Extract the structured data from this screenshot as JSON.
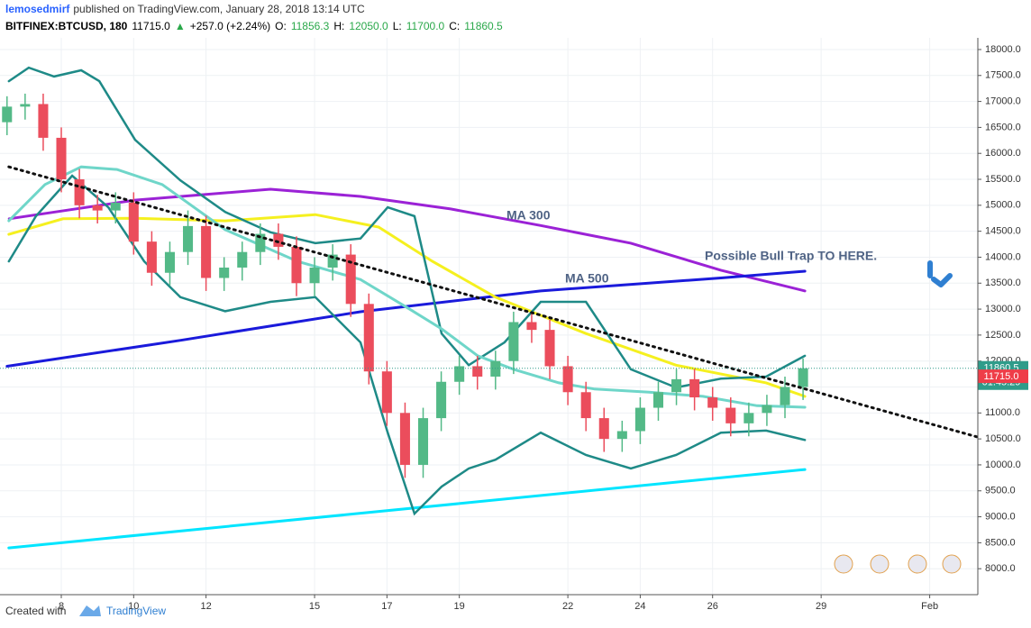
{
  "header": {
    "user": "lemosedmirf",
    "published": "published on TradingView.com, January 28, 2018 13:14 UTC",
    "quote": [
      {
        "text": "BITFINEX:BTCUSD, 180",
        "color": "#000000"
      },
      {
        "text": "11715.0",
        "color": "#000000"
      },
      {
        "text": "▲",
        "color": "#2aa84a"
      },
      {
        "text": "+257.0 (+2.24%)",
        "color": "#000000"
      },
      {
        "text": "O:",
        "color": "#000000"
      },
      {
        "text": "11856.3",
        "color": "#2aa84a"
      },
      {
        "text": "H:",
        "color": "#000000"
      },
      {
        "text": "12050.0",
        "color": "#2aa84a"
      },
      {
        "text": "L:",
        "color": "#000000"
      },
      {
        "text": "11700.0",
        "color": "#2aa84a"
      },
      {
        "text": "C:",
        "color": "#000000"
      },
      {
        "text": "11860.5",
        "color": "#2aa84a"
      }
    ]
  },
  "footer": {
    "created": "Created with",
    "brand": "TradingView"
  },
  "chart_data": {
    "type": "candlestick",
    "up_color": "#53b987",
    "down_color": "#eb4d5c",
    "x": [
      6.5,
      7,
      7.5,
      8,
      8.5,
      9,
      9.5,
      10,
      10.5,
      11,
      11.5,
      12,
      12.5,
      13,
      13.5,
      14,
      14.5,
      15,
      15.5,
      16,
      16.5,
      17,
      17.5,
      18,
      18.5,
      19,
      19.5,
      20,
      20.5,
      21,
      21.5,
      22,
      22.5,
      23,
      23.5,
      24,
      24.5,
      25,
      25.5,
      26,
      26.5,
      27,
      27.5,
      28,
      28.5
    ],
    "open": [
      16600,
      16900,
      16950,
      16300,
      15500,
      15000,
      14900,
      15050,
      14300,
      13700,
      14100,
      14600,
      13600,
      13800,
      14100,
      14450,
      14200,
      13500,
      13800,
      14050,
      13100,
      11800,
      11000,
      10000,
      10900,
      11600,
      11900,
      11700,
      12000,
      12750,
      12600,
      11900,
      11400,
      10900,
      10500,
      10650,
      11100,
      11400,
      11650,
      11300,
      11100,
      10800,
      11000,
      11150,
      11500
    ],
    "high": [
      17100,
      17150,
      17150,
      16500,
      15700,
      15200,
      15250,
      15250,
      14500,
      14300,
      14900,
      14800,
      14000,
      14300,
      14650,
      14650,
      14400,
      14000,
      14250,
      14250,
      13300,
      12000,
      11200,
      11100,
      11800,
      12100,
      12100,
      12200,
      12950,
      12950,
      12800,
      12100,
      11600,
      11100,
      10850,
      11300,
      11600,
      11850,
      11850,
      11500,
      11300,
      11200,
      11350,
      11700,
      12050
    ],
    "low": [
      16350,
      16650,
      16050,
      15250,
      14750,
      14650,
      14650,
      14050,
      13450,
      13450,
      13850,
      13350,
      13350,
      13550,
      13850,
      13950,
      13250,
      13250,
      13550,
      12850,
      11550,
      10750,
      9750,
      9750,
      10650,
      11350,
      11450,
      11450,
      11750,
      12350,
      11650,
      11150,
      10650,
      10250,
      10250,
      10400,
      10850,
      11150,
      11050,
      10850,
      10550,
      10550,
      10750,
      10900,
      11250
    ],
    "close": [
      16900,
      16950,
      16300,
      15500,
      15000,
      14900,
      15050,
      14300,
      13700,
      14100,
      14600,
      13600,
      13800,
      14100,
      14450,
      14200,
      13500,
      13800,
      14050,
      13100,
      11800,
      11000,
      10000,
      10900,
      11600,
      11900,
      11700,
      12000,
      12750,
      12600,
      11900,
      11400,
      10900,
      10500,
      10650,
      11100,
      11400,
      11650,
      11300,
      11100,
      10800,
      11000,
      11150,
      11500,
      11860.5
    ],
    "overlays": [
      {
        "color": "#00e5ff",
        "width": 3,
        "style": "solid",
        "x": [
          6.55,
          28.55
        ],
        "values": [
          8400,
          9910
        ]
      },
      {
        "color": "#9b22d6",
        "width": 3,
        "style": "solid",
        "x": [
          6.56,
          10.04,
          13.78,
          16.27,
          18.76,
          21.25,
          23.74,
          26.23,
          28.55
        ],
        "values": [
          14740,
          15100,
          15310,
          15170,
          14930,
          14610,
          14270,
          13750,
          13350
        ]
      },
      {
        "color": "#1a1adb",
        "width": 3,
        "style": "solid",
        "x": [
          6.5,
          11.3,
          16.27,
          21.25,
          26.23,
          28.55
        ],
        "values": [
          11900,
          12400,
          12950,
          13350,
          13600,
          13730
        ]
      },
      {
        "color": "#f5f01f",
        "width": 3,
        "style": "solid",
        "x": [
          6.55,
          8.05,
          10.04,
          12.53,
          15.02,
          16.77,
          18.26,
          20.0,
          22.5,
          24.99,
          27.48,
          28.55
        ],
        "values": [
          14440,
          14740,
          14750,
          14700,
          14820,
          14580,
          13920,
          13230,
          12530,
          11920,
          11580,
          11320
        ]
      },
      {
        "color": "#1e8a87",
        "width": 2.5,
        "style": "solid",
        "x": [
          6.55,
          7.1,
          7.8,
          8.55,
          9.05,
          10.04,
          11.29,
          12.53,
          13.78,
          15.02,
          16.27,
          17.02,
          17.76,
          18.51,
          19.26,
          20.25,
          21.25,
          22.5,
          23.74,
          24.99,
          26.23,
          27.48,
          28.55
        ],
        "values": [
          17390,
          17650,
          17480,
          17600,
          17390,
          16260,
          15480,
          14870,
          14480,
          14270,
          14360,
          14960,
          14790,
          12530,
          11920,
          12360,
          13140,
          13140,
          11840,
          11490,
          11660,
          11700,
          12100
        ]
      },
      {
        "color": "#1e8a87",
        "width": 2.5,
        "style": "solid",
        "x": [
          6.55,
          7.3,
          8.3,
          9.3,
          10.29,
          11.29,
          12.53,
          13.78,
          15.02,
          16.27,
          17.02,
          17.76,
          18.51,
          19.26,
          20.0,
          21.25,
          22.5,
          23.74,
          24.99,
          26.23,
          27.48,
          28.55
        ],
        "values": [
          13920,
          14790,
          15570,
          14960,
          13920,
          13230,
          12960,
          13140,
          13230,
          12360,
          10620,
          9060,
          9580,
          9930,
          10100,
          10620,
          10190,
          9930,
          10190,
          10620,
          10660,
          10480
        ]
      },
      {
        "color": "#6fd6c9",
        "width": 3,
        "style": "solid",
        "x": [
          6.55,
          7.55,
          8.55,
          9.54,
          10.79,
          12.53,
          14.53,
          16.27,
          17.51,
          18.51,
          19.51,
          20.5,
          21.75,
          22.74,
          24.24,
          25.73,
          27.23,
          28.55
        ],
        "values": [
          14700,
          15400,
          15740,
          15690,
          15400,
          14530,
          13920,
          13570,
          13050,
          12620,
          12100,
          11840,
          11580,
          11460,
          11400,
          11320,
          11140,
          11110
        ]
      },
      {
        "color": "#111111",
        "width": 3,
        "style": "dotted",
        "x": [
          6.55,
          33.33
        ],
        "values": [
          15740,
          10535
        ]
      }
    ],
    "annotations": [
      "MA 300",
      "MA 500",
      "Possible Bull Trap TO HERE."
    ],
    "annotation_color": "#4f6385",
    "last_price": {
      "value": 11860.5,
      "label": "11860.5",
      "color": "#2f9c8a"
    },
    "countdown": "01:45:29",
    "price_marker": {
      "value": 11715,
      "label": "11715.0",
      "color": "#ef3d48"
    },
    "xlim": [
      6.306,
      33.33
    ],
    "ylim": [
      7500,
      18225
    ],
    "xticks": [
      8,
      10,
      12,
      15,
      17,
      19,
      22,
      24,
      26,
      29,
      {
        "value": 32,
        "label": "Feb"
      }
    ],
    "yticks": [
      {
        "value": 8000,
        "label": "8000.0"
      },
      {
        "value": 8500,
        "label": "8500.0"
      },
      {
        "value": 9000,
        "label": "9000.0"
      },
      {
        "value": 9500,
        "label": "9500.0"
      },
      {
        "value": 10000,
        "label": "10000.0"
      },
      {
        "value": 10500,
        "label": "10500.0"
      },
      {
        "value": 11000,
        "label": "11000.0"
      },
      {
        "value": 11500,
        "label": "11500.0"
      },
      {
        "value": 12000,
        "label": "12000.0"
      },
      {
        "value": 12500,
        "label": "12500.0"
      },
      {
        "value": 13000,
        "label": "13000.0"
      },
      {
        "value": 13500,
        "label": "13500.0"
      },
      {
        "value": 14000,
        "label": "14000.0"
      },
      {
        "value": 14500,
        "label": "14500.0"
      },
      {
        "value": 15000,
        "label": "15000.0"
      },
      {
        "value": 15500,
        "label": "15500.0"
      },
      {
        "value": 16000,
        "label": "16000.0"
      },
      {
        "value": 16500,
        "label": "16500.0"
      },
      {
        "value": 17000,
        "label": "17000.0"
      },
      {
        "value": 17500,
        "label": "17500.0"
      },
      {
        "value": 18000,
        "label": "18000.0"
      }
    ],
    "grid": true
  }
}
